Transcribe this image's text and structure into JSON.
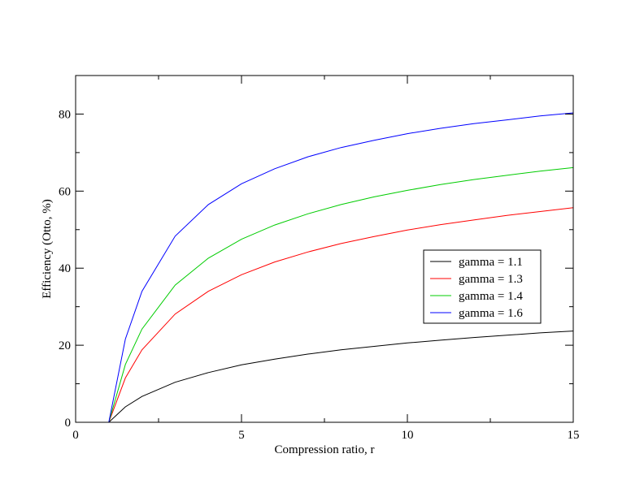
{
  "chart_data": {
    "type": "line",
    "xlabel": "Compression ratio, r",
    "ylabel": "Efficiency (Otto, %)",
    "xlim": [
      0,
      15
    ],
    "ylim": [
      0,
      90
    ],
    "x_ticks": [
      0,
      5,
      10,
      15
    ],
    "y_ticks": [
      0,
      20,
      40,
      60,
      80
    ],
    "grid": false,
    "legend_position": "center-right",
    "x": [
      1,
      1.5,
      2,
      3,
      4,
      5,
      6,
      7,
      8,
      9,
      10,
      11,
      12,
      13,
      14,
      15
    ],
    "series": [
      {
        "name": "gamma = 1.1",
        "color": "#000000",
        "values": [
          0.0,
          4.0,
          6.7,
          10.4,
          12.9,
          14.9,
          16.4,
          17.7,
          18.8,
          19.7,
          20.6,
          21.3,
          22.0,
          22.6,
          23.2,
          23.7
        ]
      },
      {
        "name": "gamma = 1.3",
        "color": "#ff0000",
        "values": [
          0.0,
          11.5,
          18.8,
          28.1,
          34.0,
          38.3,
          41.6,
          44.2,
          46.4,
          48.2,
          49.9,
          51.3,
          52.5,
          53.7,
          54.7,
          55.7
        ]
      },
      {
        "name": "gamma = 1.4",
        "color": "#00cc00",
        "values": [
          0.0,
          15.0,
          24.2,
          35.6,
          42.6,
          47.5,
          51.2,
          54.1,
          56.5,
          58.5,
          60.2,
          61.7,
          63.0,
          64.1,
          65.2,
          66.1
        ]
      },
      {
        "name": "gamma = 1.6",
        "color": "#0000ff",
        "values": [
          0.0,
          21.6,
          34.0,
          48.3,
          56.5,
          61.9,
          65.8,
          68.9,
          71.3,
          73.2,
          74.9,
          76.3,
          77.5,
          78.5,
          79.5,
          80.3
        ]
      }
    ]
  }
}
